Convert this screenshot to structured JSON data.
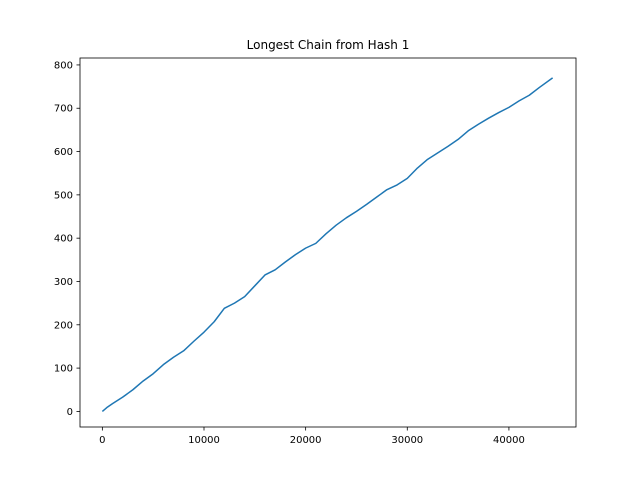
{
  "chart_data": {
    "type": "line",
    "title": "Longest Chain from Hash 1",
    "xlabel": "",
    "ylabel": "",
    "xlim": [
      -2200,
      46600
    ],
    "ylim": [
      -36,
      816
    ],
    "xticks": [
      0,
      10000,
      20000,
      30000,
      40000
    ],
    "yticks": [
      0,
      100,
      200,
      300,
      400,
      500,
      600,
      700,
      800
    ],
    "xtick_labels": [
      "0",
      "10000",
      "20000",
      "30000",
      "40000"
    ],
    "ytick_labels": [
      "0",
      "100",
      "200",
      "300",
      "400",
      "500",
      "600",
      "700",
      "800"
    ],
    "grid": false,
    "line_color": "#1f77b4",
    "series": [
      {
        "x": [
          0,
          500,
          1000,
          2000,
          3000,
          4000,
          5000,
          6000,
          7000,
          8000,
          9000,
          10000,
          11000,
          12000,
          13000,
          14000,
          15000,
          16000,
          17000,
          18000,
          19000,
          20000,
          21000,
          22000,
          23000,
          24000,
          25000,
          26000,
          27000,
          28000,
          29000,
          30000,
          31000,
          32000,
          33000,
          34000,
          35000,
          36000,
          37000,
          38000,
          39000,
          40000,
          41000,
          42000,
          43000,
          44300
        ],
        "y": [
          0,
          10,
          18,
          33,
          50,
          70,
          87,
          108,
          125,
          140,
          162,
          183,
          207,
          238,
          250,
          265,
          290,
          315,
          327,
          345,
          362,
          377,
          388,
          410,
          430,
          447,
          462,
          478,
          495,
          512,
          523,
          538,
          562,
          582,
          597,
          612,
          628,
          648,
          663,
          677,
          690,
          702,
          717,
          730,
          748,
          770
        ]
      }
    ]
  }
}
